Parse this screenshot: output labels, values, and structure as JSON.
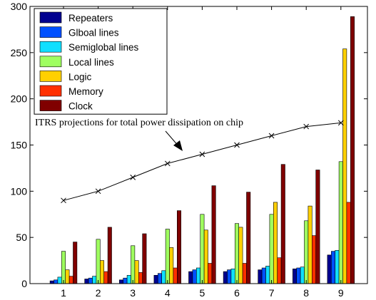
{
  "chart_data": {
    "type": "bar",
    "categories": [
      "1",
      "2",
      "3",
      "4",
      "5",
      "6",
      "7",
      "8",
      "9"
    ],
    "ylim": [
      0,
      300
    ],
    "yticks": [
      "0",
      "50",
      "100",
      "150",
      "200",
      "250",
      "300"
    ],
    "grid": false,
    "legend_position": "top-left",
    "series": [
      {
        "name": "Repeaters",
        "color": "#00008f",
        "values": [
          3,
          5,
          4,
          9,
          13,
          13,
          15,
          16,
          31
        ]
      },
      {
        "name": "Glboal lines",
        "color": "#0050ff",
        "values": [
          4,
          6,
          6,
          11,
          15,
          15,
          17,
          17,
          35
        ]
      },
      {
        "name": "Semiglobal lines",
        "color": "#10dfff",
        "values": [
          7,
          8,
          9,
          14,
          17,
          16,
          19,
          18,
          36
        ]
      },
      {
        "name": "Local lines",
        "color": "#9fff60",
        "values": [
          35,
          48,
          41,
          59,
          75,
          65,
          75,
          68,
          132
        ]
      },
      {
        "name": "Logic",
        "color": "#ffd000",
        "values": [
          15,
          25,
          25,
          39,
          58,
          61,
          88,
          84,
          254
        ]
      },
      {
        "name": "Memory",
        "color": "#ff3000",
        "values": [
          8,
          13,
          12,
          17,
          22,
          22,
          28,
          52,
          88
        ]
      },
      {
        "name": "Clock",
        "color": "#800000",
        "values": [
          45,
          61,
          54,
          79,
          106,
          99,
          129,
          123,
          289
        ]
      }
    ],
    "projection": {
      "label": "ITRS projections for total power dissipation on chip",
      "values": [
        90,
        100,
        115,
        130,
        140,
        150,
        160,
        170,
        174
      ]
    }
  }
}
